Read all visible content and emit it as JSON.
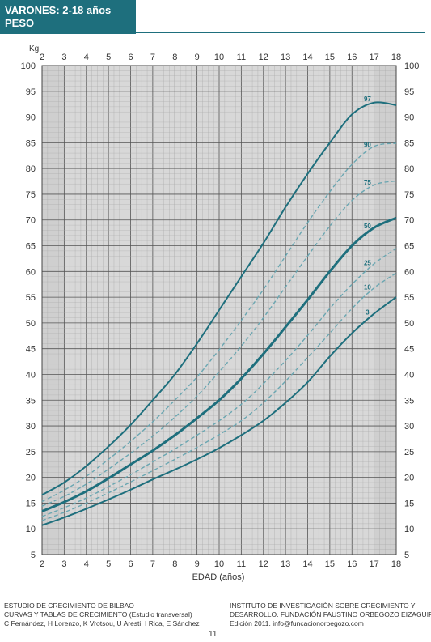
{
  "header": {
    "title_line1": "VARONES: 2-18 años",
    "title_line2": "PESO"
  },
  "chart_data": {
    "type": "line",
    "title": "VARONES: 2-18 años PESO",
    "xlabel": "EDAD (años)",
    "ylabel": "Kg",
    "xlim": [
      2,
      18
    ],
    "ylim": [
      5,
      100
    ],
    "x_ticks": [
      "2",
      "3",
      "4",
      "5",
      "6",
      "7",
      "8",
      "9",
      "10",
      "11",
      "12",
      "13",
      "14",
      "15",
      "16",
      "17",
      "18"
    ],
    "y_ticks": [
      "5",
      "10",
      "15",
      "20",
      "25",
      "30",
      "35",
      "40",
      "45",
      "50",
      "55",
      "60",
      "65",
      "70",
      "75",
      "80",
      "85",
      "90",
      "95",
      "100"
    ],
    "x": [
      2,
      3,
      4,
      5,
      6,
      7,
      8,
      9,
      10,
      11,
      12,
      13,
      14,
      15,
      16,
      17,
      18
    ],
    "series": [
      {
        "name": "97",
        "style": "solid",
        "values": [
          16.6,
          19.0,
          22.2,
          26.0,
          30.2,
          35.0,
          40.0,
          46.0,
          52.5,
          59.0,
          65.5,
          72.5,
          79.0,
          85.0,
          90.5,
          92.8,
          92.3
        ]
      },
      {
        "name": "90",
        "style": "dashed",
        "values": [
          15.3,
          17.5,
          20.2,
          23.5,
          27.0,
          30.8,
          35.0,
          39.5,
          44.8,
          50.5,
          56.5,
          63.0,
          69.5,
          75.5,
          80.8,
          84.3,
          84.9
        ]
      },
      {
        "name": "75",
        "style": "dashed",
        "values": [
          14.4,
          16.3,
          18.7,
          21.6,
          24.7,
          28.0,
          31.7,
          35.8,
          40.5,
          45.5,
          51.0,
          57.0,
          63.0,
          68.8,
          73.8,
          76.8,
          77.6
        ]
      },
      {
        "name": "50",
        "style": "bold",
        "values": [
          13.4,
          15.2,
          17.3,
          19.8,
          22.5,
          25.2,
          28.2,
          31.5,
          35.0,
          39.2,
          44.0,
          49.2,
          54.5,
          60.0,
          65.0,
          68.5,
          70.4
        ]
      },
      {
        "name": "25",
        "style": "dashed",
        "values": [
          12.4,
          14.1,
          16.0,
          18.2,
          20.5,
          23.0,
          25.5,
          28.2,
          31.0,
          34.2,
          38.2,
          42.7,
          47.6,
          52.8,
          57.5,
          61.5,
          64.5
        ]
      },
      {
        "name": "10",
        "style": "dashed",
        "values": [
          11.6,
          13.2,
          15.0,
          17.0,
          19.1,
          21.3,
          23.5,
          25.8,
          28.3,
          31.0,
          34.5,
          38.7,
          43.3,
          48.0,
          52.8,
          56.8,
          59.7
        ]
      },
      {
        "name": "3",
        "style": "solid",
        "values": [
          10.7,
          12.2,
          13.9,
          15.7,
          17.6,
          19.6,
          21.5,
          23.5,
          25.7,
          28.2,
          31.0,
          34.5,
          38.5,
          43.5,
          48.0,
          51.8,
          55.0
        ]
      }
    ],
    "colors": {
      "line": "#1e6f7d",
      "dashed": "#6aa6b1",
      "plot_bg": "#cfcfcf",
      "band_bg": "#e3e3e3",
      "grid_major": "#555555",
      "grid_minor": "#a8a8a8"
    },
    "grid": true,
    "shading": "darker at ages 2-3 and 17-18"
  },
  "footer": {
    "left_line1": "ESTUDIO DE CRECIMIENTO DE BILBAO",
    "left_line2": "CURVAS Y TABLAS DE CRECIMIENTO (Estudio transversal)",
    "left_line3": "C Fernández, H Lorenzo, K Vrotsou, U Aresti, I Rica, E Sánchez",
    "right_line1": "INSTITUTO DE INVESTIGACIÓN SOBRE CRECIMIENTO Y",
    "right_line2": "DESARROLLO. FUNDACIÓN FAUSTINO ORBEGOZO EIZAGUIRRE",
    "right_line3": "Edición 2011. info@funcacionorbegozo.com"
  },
  "page_number": "11"
}
